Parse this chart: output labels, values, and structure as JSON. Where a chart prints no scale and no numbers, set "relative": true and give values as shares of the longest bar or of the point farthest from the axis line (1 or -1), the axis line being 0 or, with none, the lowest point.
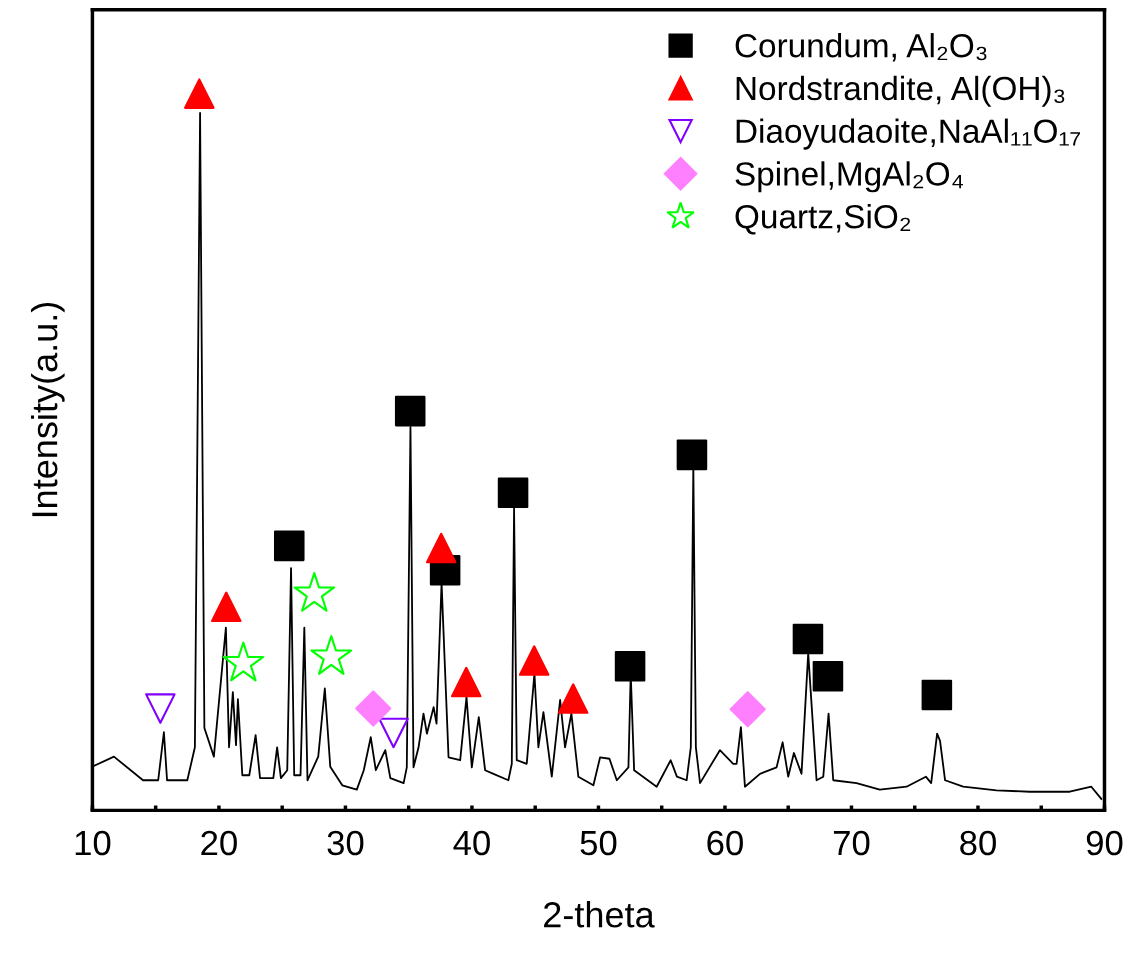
{
  "chart_data": {
    "type": "line",
    "xlabel": "2-theta",
    "ylabel": "Intensity(a.u.)",
    "relative": true,
    "xlim": [
      10,
      90
    ],
    "xticks": [
      10,
      {
        "value": 15,
        "label": null
      },
      20,
      {
        "value": 25,
        "label": null
      },
      30,
      {
        "value": 35,
        "label": null
      },
      40,
      {
        "value": 45,
        "label": null
      },
      50,
      {
        "value": 55,
        "label": null
      },
      60,
      {
        "value": 65,
        "label": null
      },
      70,
      {
        "value": 75,
        "label": null
      },
      80,
      {
        "value": 85,
        "label": null
      },
      90
    ],
    "tick_labels": "x",
    "legend": "top right",
    "grid": false,
    "series": [
      {
        "color": "#000000",
        "line_style": "solid",
        "x": [
          10.0,
          11.7,
          14.0,
          15.2,
          15.65,
          15.9,
          17.5,
          18.1,
          18.51,
          18.85,
          19.6,
          20.55,
          20.8,
          21.1,
          21.35,
          21.5,
          21.85,
          22.4,
          22.9,
          23.25,
          24.3,
          24.6,
          24.9,
          25.4,
          25.7,
          25.95,
          26.45,
          26.75,
          27.0,
          27.85,
          28.37,
          28.8,
          29.75,
          30.9,
          31.45,
          32.0,
          32.4,
          33.15,
          33.55,
          34.6,
          34.85,
          35.14,
          35.38,
          35.78,
          36.17,
          36.44,
          36.97,
          37.2,
          37.6,
          37.8,
          38.15,
          39.07,
          39.57,
          39.99,
          40.54,
          41.04,
          41.7,
          42.88,
          43.15,
          43.33,
          43.54,
          44.33,
          44.94,
          45.25,
          45.65,
          46.31,
          46.97,
          47.36,
          47.86,
          48.41,
          49.6,
          50.13,
          50.87,
          51.45,
          52.37,
          52.55,
          52.82,
          54.6,
          55.71,
          56.2,
          56.97,
          57.3,
          57.5,
          57.7,
          58.03,
          59.6,
          60.65,
          60.92,
          61.26,
          61.58,
          62.77,
          64.08,
          64.56,
          65.0,
          65.45,
          66.05,
          66.58,
          67.24,
          67.77,
          68.19,
          68.56,
          70.4,
          72.24,
          74.35,
          75.88,
          76.3,
          76.77,
          77.0,
          77.4,
          78.83,
          81.46,
          84.09,
          87.25,
          88.96,
          89.75
        ],
        "values": [
          0.061,
          0.075,
          0.042,
          0.042,
          0.109,
          0.042,
          0.042,
          0.088,
          0.973,
          0.115,
          0.075,
          0.255,
          0.088,
          0.165,
          0.091,
          0.155,
          0.049,
          0.049,
          0.105,
          0.045,
          0.045,
          0.088,
          0.045,
          0.056,
          0.338,
          0.049,
          0.049,
          0.255,
          0.042,
          0.075,
          0.17,
          0.061,
          0.035,
          0.029,
          0.056,
          0.102,
          0.056,
          0.084,
          0.045,
          0.038,
          0.06,
          0.535,
          0.06,
          0.088,
          0.135,
          0.107,
          0.144,
          0.121,
          0.317,
          0.228,
          0.074,
          0.07,
          0.158,
          0.06,
          0.13,
          0.056,
          0.051,
          0.042,
          0.065,
          0.421,
          0.07,
          0.065,
          0.191,
          0.088,
          0.137,
          0.047,
          0.154,
          0.088,
          0.135,
          0.047,
          0.035,
          0.074,
          0.072,
          0.042,
          0.06,
          0.191,
          0.056,
          0.033,
          0.07,
          0.047,
          0.042,
          0.088,
          0.48,
          0.088,
          0.038,
          0.084,
          0.065,
          0.065,
          0.116,
          0.033,
          0.051,
          0.06,
          0.095,
          0.047,
          0.08,
          0.051,
          0.219,
          0.042,
          0.047,
          0.135,
          0.042,
          0.038,
          0.029,
          0.033,
          0.047,
          0.038,
          0.107,
          0.097,
          0.042,
          0.033,
          0.028,
          0.026,
          0.026,
          0.033,
          0.016
        ]
      },
      {
        "type": "scatter",
        "name": "Corundum, Al₂O₃",
        "color": "#000000",
        "marker": "square",
        "x": [
          25.56,
          35.12,
          37.88,
          43.25,
          52.5,
          57.39,
          66.56,
          68.14,
          76.75
        ],
        "values": [
          0.369,
          0.557,
          0.335,
          0.443,
          0.201,
          0.496,
          0.239,
          0.187,
          0.161
        ]
      },
      {
        "type": "scatter",
        "name": "Nordstrandite, Al(OH)₃",
        "color": "#ff0000",
        "marker": "triangle",
        "x": [
          18.45,
          20.58,
          37.57,
          39.55,
          44.92,
          48.0
        ],
        "values": [
          1.0,
          0.284,
          0.366,
          0.179,
          0.209,
          0.156
        ]
      },
      {
        "type": "scatter",
        "name": "Diaoyudaoite,NaAl₁₁O₁₇",
        "color": "#8000ff",
        "marker": "triangle_down",
        "x": [
          15.37,
          33.8
        ],
        "values": [
          0.142,
          0.108
        ]
      },
      {
        "type": "scatter",
        "name": "Spinel,MgAl₂O₄",
        "color": "#ff80ff",
        "marker": "diamond",
        "x": [
          32.2,
          61.8
        ],
        "values": [
          0.142,
          0.141
        ]
      },
      {
        "type": "scatter",
        "name": "Quartz,SiO₂",
        "color": "#00ff00",
        "marker": "star",
        "x": [
          21.93,
          27.54,
          28.88
        ],
        "values": [
          0.205,
          0.302,
          0.214
        ]
      }
    ]
  }
}
